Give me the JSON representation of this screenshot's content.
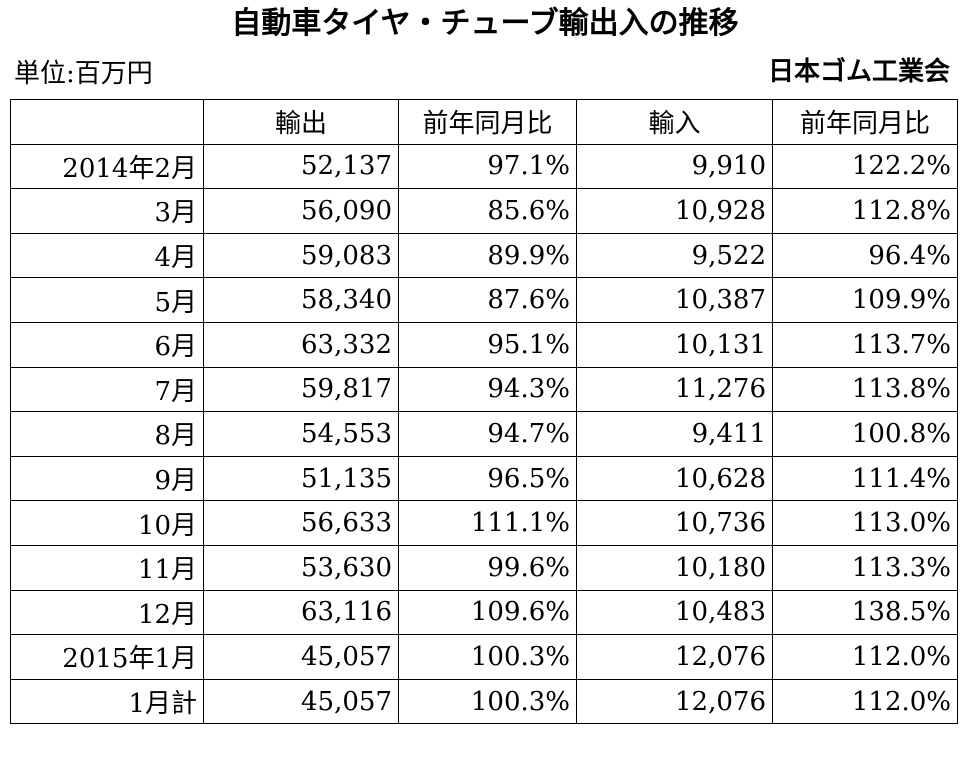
{
  "title": "自動車タイヤ・チューブ輸出入の推移",
  "unit_label": "単位:百万円",
  "source_label": "日本ゴム工業会",
  "table": {
    "headers": [
      "",
      "輸出",
      "前年同月比",
      "輸入",
      "前年同月比"
    ],
    "rows": [
      [
        "2014年2月",
        "52,137",
        "97.1%",
        "9,910",
        "122.2%"
      ],
      [
        "3月",
        "56,090",
        "85.6%",
        "10,928",
        "112.8%"
      ],
      [
        "4月",
        "59,083",
        "89.9%",
        "9,522",
        "96.4%"
      ],
      [
        "5月",
        "58,340",
        "87.6%",
        "10,387",
        "109.9%"
      ],
      [
        "6月",
        "63,332",
        "95.1%",
        "10,131",
        "113.7%"
      ],
      [
        "7月",
        "59,817",
        "94.3%",
        "11,276",
        "113.8%"
      ],
      [
        "8月",
        "54,553",
        "94.7%",
        "9,411",
        "100.8%"
      ],
      [
        "9月",
        "51,135",
        "96.5%",
        "10,628",
        "111.4%"
      ],
      [
        "10月",
        "56,633",
        "111.1%",
        "10,736",
        "113.0%"
      ],
      [
        "11月",
        "53,630",
        "99.6%",
        "10,180",
        "113.3%"
      ],
      [
        "12月",
        "63,116",
        "109.6%",
        "10,483",
        "138.5%"
      ],
      [
        "2015年1月",
        "45,057",
        "100.3%",
        "12,076",
        "112.0%"
      ],
      [
        "1月計",
        "45,057",
        "100.3%",
        "12,076",
        "112.0%"
      ]
    ]
  }
}
